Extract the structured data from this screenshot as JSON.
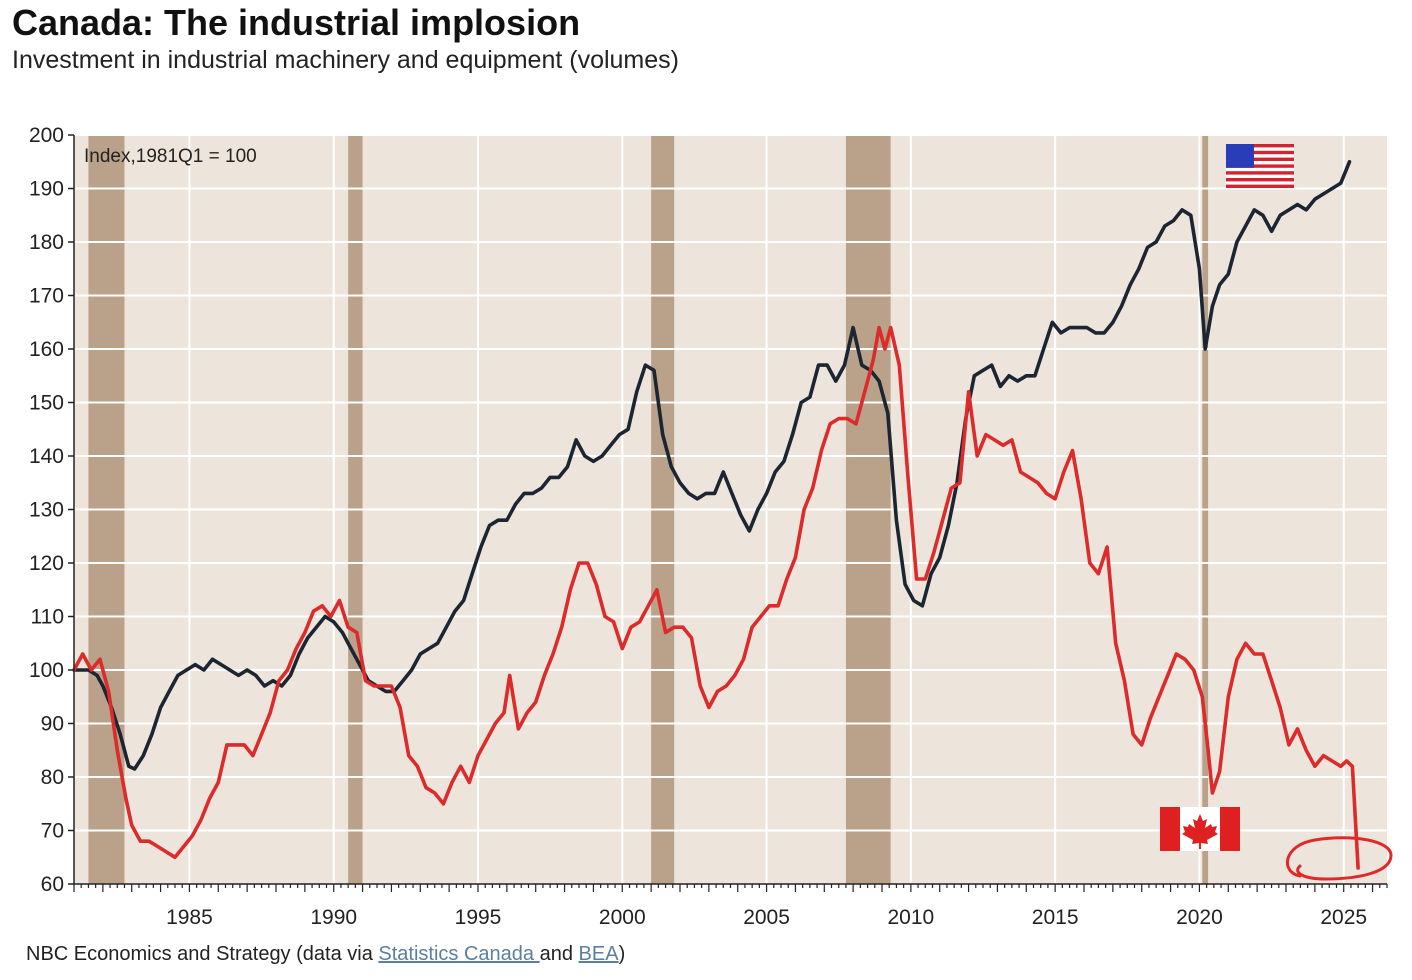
{
  "title": "Canada: The industrial implosion",
  "subtitle": "Investment in industrial machinery and equipment (volumes)",
  "source": {
    "prefix": "NBC Economics and Strategy (data via ",
    "link1": "Statistics Canada ",
    "middle": "and ",
    "link2": "BEA",
    "suffix": ")"
  },
  "colors": {
    "plot_background": "#ede5dc",
    "recession_band": "#b9a289",
    "usa_line": "#1c2633",
    "canada_line": "#dc2b2b",
    "gridline": "#ffffff"
  },
  "icons": [
    "usa-flag-icon",
    "canada-flag-icon",
    "red-circle-annotation"
  ],
  "chart_data": {
    "type": "line",
    "index_note": "Index,1981Q1 = 100",
    "xlim": [
      1981.0,
      2026.5
    ],
    "ylim": [
      60,
      200
    ],
    "y_ticks": [
      60,
      70,
      80,
      90,
      100,
      110,
      120,
      130,
      140,
      150,
      160,
      170,
      180,
      190,
      200
    ],
    "x_ticks": [
      1985,
      1990,
      1995,
      2000,
      2005,
      2010,
      2015,
      2020,
      2025
    ],
    "grid": true,
    "recessions": [
      [
        1981.5,
        1982.75
      ],
      [
        1990.5,
        1991.0
      ],
      [
        2001.0,
        2001.8
      ],
      [
        2007.75,
        2009.3
      ],
      [
        2020.1,
        2020.3
      ]
    ],
    "series": [
      {
        "flag": "usa",
        "points": [
          [
            1981.0,
            100
          ],
          [
            1981.5,
            100
          ],
          [
            1981.8,
            99
          ],
          [
            1982.0,
            97
          ],
          [
            1982.3,
            93
          ],
          [
            1982.6,
            88
          ],
          [
            1982.9,
            82
          ],
          [
            1983.1,
            81.5
          ],
          [
            1983.4,
            84
          ],
          [
            1983.7,
            88
          ],
          [
            1984.0,
            93
          ],
          [
            1984.3,
            96
          ],
          [
            1984.6,
            99
          ],
          [
            1984.9,
            100
          ],
          [
            1985.2,
            101
          ],
          [
            1985.5,
            100
          ],
          [
            1985.8,
            102
          ],
          [
            1986.1,
            101
          ],
          [
            1986.4,
            100
          ],
          [
            1986.7,
            99
          ],
          [
            1987.0,
            100
          ],
          [
            1987.3,
            99
          ],
          [
            1987.6,
            97
          ],
          [
            1987.9,
            98
          ],
          [
            1988.2,
            97
          ],
          [
            1988.5,
            99
          ],
          [
            1988.8,
            103
          ],
          [
            1989.1,
            106
          ],
          [
            1989.4,
            108
          ],
          [
            1989.7,
            110
          ],
          [
            1990.0,
            109
          ],
          [
            1990.3,
            107
          ],
          [
            1990.6,
            104
          ],
          [
            1990.9,
            101
          ],
          [
            1991.2,
            98
          ],
          [
            1991.5,
            97
          ],
          [
            1991.8,
            96
          ],
          [
            1992.1,
            96
          ],
          [
            1992.4,
            98
          ],
          [
            1992.7,
            100
          ],
          [
            1993.0,
            103
          ],
          [
            1993.3,
            104
          ],
          [
            1993.6,
            105
          ],
          [
            1993.9,
            108
          ],
          [
            1994.2,
            111
          ],
          [
            1994.5,
            113
          ],
          [
            1994.8,
            118
          ],
          [
            1995.1,
            123
          ],
          [
            1995.4,
            127
          ],
          [
            1995.7,
            128
          ],
          [
            1996.0,
            128
          ],
          [
            1996.3,
            131
          ],
          [
            1996.6,
            133
          ],
          [
            1996.9,
            133
          ],
          [
            1997.2,
            134
          ],
          [
            1997.5,
            136
          ],
          [
            1997.8,
            136
          ],
          [
            1998.1,
            138
          ],
          [
            1998.4,
            143
          ],
          [
            1998.7,
            140
          ],
          [
            1999.0,
            139
          ],
          [
            1999.3,
            140
          ],
          [
            1999.6,
            142
          ],
          [
            1999.9,
            144
          ],
          [
            2000.2,
            145
          ],
          [
            2000.5,
            152
          ],
          [
            2000.8,
            157
          ],
          [
            2001.1,
            156
          ],
          [
            2001.4,
            144
          ],
          [
            2001.7,
            138
          ],
          [
            2002.0,
            135
          ],
          [
            2002.3,
            133
          ],
          [
            2002.6,
            132
          ],
          [
            2002.9,
            133
          ],
          [
            2003.2,
            133
          ],
          [
            2003.5,
            137
          ],
          [
            2003.8,
            133
          ],
          [
            2004.1,
            129
          ],
          [
            2004.4,
            126
          ],
          [
            2004.7,
            130
          ],
          [
            2005.0,
            133
          ],
          [
            2005.3,
            137
          ],
          [
            2005.6,
            139
          ],
          [
            2005.9,
            144
          ],
          [
            2006.2,
            150
          ],
          [
            2006.5,
            151
          ],
          [
            2006.8,
            157
          ],
          [
            2007.1,
            157
          ],
          [
            2007.4,
            154
          ],
          [
            2007.7,
            157
          ],
          [
            2008.0,
            164
          ],
          [
            2008.3,
            157
          ],
          [
            2008.6,
            156
          ],
          [
            2008.9,
            154
          ],
          [
            2009.2,
            148
          ],
          [
            2009.5,
            128
          ],
          [
            2009.8,
            116
          ],
          [
            2010.1,
            113
          ],
          [
            2010.4,
            112
          ],
          [
            2010.7,
            118
          ],
          [
            2011.0,
            121
          ],
          [
            2011.3,
            127
          ],
          [
            2011.6,
            135
          ],
          [
            2011.9,
            147
          ],
          [
            2012.2,
            155
          ],
          [
            2012.5,
            156
          ],
          [
            2012.8,
            157
          ],
          [
            2013.1,
            153
          ],
          [
            2013.4,
            155
          ],
          [
            2013.7,
            154
          ],
          [
            2014.0,
            155
          ],
          [
            2014.3,
            155
          ],
          [
            2014.6,
            160
          ],
          [
            2014.9,
            165
          ],
          [
            2015.2,
            163
          ],
          [
            2015.5,
            164
          ],
          [
            2015.8,
            164
          ],
          [
            2016.1,
            164
          ],
          [
            2016.4,
            163
          ],
          [
            2016.7,
            163
          ],
          [
            2017.0,
            165
          ],
          [
            2017.3,
            168
          ],
          [
            2017.6,
            172
          ],
          [
            2017.9,
            175
          ],
          [
            2018.2,
            179
          ],
          [
            2018.5,
            180
          ],
          [
            2018.8,
            183
          ],
          [
            2019.1,
            184
          ],
          [
            2019.4,
            186
          ],
          [
            2019.7,
            185
          ],
          [
            2020.0,
            175
          ],
          [
            2020.2,
            160
          ],
          [
            2020.45,
            168
          ],
          [
            2020.7,
            172
          ],
          [
            2021.0,
            174
          ],
          [
            2021.3,
            180
          ],
          [
            2021.6,
            183
          ],
          [
            2021.9,
            186
          ],
          [
            2022.2,
            185
          ],
          [
            2022.5,
            182
          ],
          [
            2022.8,
            185
          ],
          [
            2023.1,
            186
          ],
          [
            2023.4,
            187
          ],
          [
            2023.7,
            186
          ],
          [
            2024.0,
            188
          ],
          [
            2024.3,
            189
          ],
          [
            2024.6,
            190
          ],
          [
            2024.9,
            191
          ],
          [
            2025.2,
            195
          ]
        ]
      },
      {
        "flag": "canada",
        "points": [
          [
            1981.0,
            100
          ],
          [
            1981.3,
            103
          ],
          [
            1981.6,
            100
          ],
          [
            1981.9,
            102
          ],
          [
            1982.2,
            96
          ],
          [
            1982.5,
            85
          ],
          [
            1982.8,
            76
          ],
          [
            1983.0,
            71
          ],
          [
            1983.3,
            68
          ],
          [
            1983.6,
            68
          ],
          [
            1983.9,
            67
          ],
          [
            1984.2,
            66
          ],
          [
            1984.5,
            65
          ],
          [
            1984.8,
            67
          ],
          [
            1985.1,
            69
          ],
          [
            1985.4,
            72
          ],
          [
            1985.7,
            76
          ],
          [
            1986.0,
            79
          ],
          [
            1986.3,
            86
          ],
          [
            1986.6,
            86
          ],
          [
            1986.9,
            86
          ],
          [
            1987.2,
            84
          ],
          [
            1987.5,
            88
          ],
          [
            1987.8,
            92
          ],
          [
            1988.1,
            98
          ],
          [
            1988.4,
            100
          ],
          [
            1988.7,
            104
          ],
          [
            1989.0,
            107
          ],
          [
            1989.3,
            111
          ],
          [
            1989.6,
            112
          ],
          [
            1989.9,
            110
          ],
          [
            1990.2,
            113
          ],
          [
            1990.5,
            108
          ],
          [
            1990.8,
            107
          ],
          [
            1991.1,
            98
          ],
          [
            1991.4,
            97
          ],
          [
            1991.7,
            97
          ],
          [
            1992.0,
            97
          ],
          [
            1992.3,
            93
          ],
          [
            1992.6,
            84
          ],
          [
            1992.9,
            82
          ],
          [
            1993.2,
            78
          ],
          [
            1993.5,
            77
          ],
          [
            1993.8,
            75
          ],
          [
            1994.1,
            79
          ],
          [
            1994.4,
            82
          ],
          [
            1994.7,
            79
          ],
          [
            1995.0,
            84
          ],
          [
            1995.3,
            87
          ],
          [
            1995.6,
            90
          ],
          [
            1995.9,
            92
          ],
          [
            1996.1,
            99
          ],
          [
            1996.4,
            89
          ],
          [
            1996.7,
            92
          ],
          [
            1997.0,
            94
          ],
          [
            1997.3,
            99
          ],
          [
            1997.6,
            103
          ],
          [
            1997.9,
            108
          ],
          [
            1998.2,
            115
          ],
          [
            1998.5,
            120
          ],
          [
            1998.8,
            120
          ],
          [
            1999.1,
            116
          ],
          [
            1999.4,
            110
          ],
          [
            1999.7,
            109
          ],
          [
            2000.0,
            104
          ],
          [
            2000.3,
            108
          ],
          [
            2000.6,
            109
          ],
          [
            2000.9,
            112
          ],
          [
            2001.2,
            115
          ],
          [
            2001.5,
            107
          ],
          [
            2001.8,
            108
          ],
          [
            2002.1,
            108
          ],
          [
            2002.4,
            106
          ],
          [
            2002.7,
            97
          ],
          [
            2003.0,
            93
          ],
          [
            2003.3,
            96
          ],
          [
            2003.6,
            97
          ],
          [
            2003.9,
            99
          ],
          [
            2004.2,
            102
          ],
          [
            2004.5,
            108
          ],
          [
            2004.8,
            110
          ],
          [
            2005.1,
            112
          ],
          [
            2005.4,
            112
          ],
          [
            2005.7,
            117
          ],
          [
            2006.0,
            121
          ],
          [
            2006.3,
            130
          ],
          [
            2006.6,
            134
          ],
          [
            2006.9,
            141
          ],
          [
            2007.2,
            146
          ],
          [
            2007.5,
            147
          ],
          [
            2007.8,
            147
          ],
          [
            2008.1,
            146
          ],
          [
            2008.4,
            152
          ],
          [
            2008.7,
            158
          ],
          [
            2008.9,
            164
          ],
          [
            2009.1,
            160
          ],
          [
            2009.3,
            164
          ],
          [
            2009.6,
            157
          ],
          [
            2009.9,
            136
          ],
          [
            2010.2,
            117
          ],
          [
            2010.5,
            117
          ],
          [
            2010.8,
            122
          ],
          [
            2011.1,
            128
          ],
          [
            2011.4,
            134
          ],
          [
            2011.7,
            135
          ],
          [
            2012.0,
            152
          ],
          [
            2012.3,
            140
          ],
          [
            2012.6,
            144
          ],
          [
            2012.9,
            143
          ],
          [
            2013.2,
            142
          ],
          [
            2013.5,
            143
          ],
          [
            2013.8,
            137
          ],
          [
            2014.1,
            136
          ],
          [
            2014.4,
            135
          ],
          [
            2014.7,
            133
          ],
          [
            2015.0,
            132
          ],
          [
            2015.3,
            137
          ],
          [
            2015.6,
            141
          ],
          [
            2015.9,
            132
          ],
          [
            2016.2,
            120
          ],
          [
            2016.5,
            118
          ],
          [
            2016.8,
            123
          ],
          [
            2017.1,
            105
          ],
          [
            2017.4,
            98
          ],
          [
            2017.7,
            88
          ],
          [
            2018.0,
            86
          ],
          [
            2018.3,
            91
          ],
          [
            2018.6,
            95
          ],
          [
            2018.9,
            99
          ],
          [
            2019.2,
            103
          ],
          [
            2019.5,
            102
          ],
          [
            2019.8,
            100
          ],
          [
            2020.1,
            95
          ],
          [
            2020.3,
            85
          ],
          [
            2020.45,
            77
          ],
          [
            2020.7,
            81
          ],
          [
            2021.0,
            95
          ],
          [
            2021.3,
            102
          ],
          [
            2021.6,
            105
          ],
          [
            2021.9,
            103
          ],
          [
            2022.2,
            103
          ],
          [
            2022.5,
            98
          ],
          [
            2022.8,
            93
          ],
          [
            2023.1,
            86
          ],
          [
            2023.4,
            89
          ],
          [
            2023.7,
            85
          ],
          [
            2024.0,
            82
          ],
          [
            2024.3,
            84
          ],
          [
            2024.6,
            83
          ],
          [
            2024.9,
            82
          ],
          [
            2025.1,
            83
          ],
          [
            2025.3,
            82
          ],
          [
            2025.5,
            63
          ]
        ]
      }
    ]
  }
}
